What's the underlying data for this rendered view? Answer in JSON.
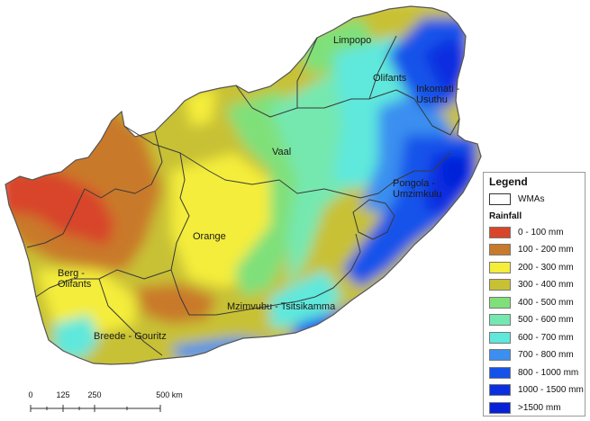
{
  "map": {
    "regions": [
      {
        "name": "Limpopo"
      },
      {
        "name": "Olifants"
      },
      {
        "name": "Inkomati -",
        "name2": "Usuthu"
      },
      {
        "name": "Vaal"
      },
      {
        "name": "Pongola -",
        "name2": "Umzimkulu"
      },
      {
        "name": "Orange"
      },
      {
        "name": "Berg -",
        "name2": "Olifants"
      },
      {
        "name": "Mzimvubu - Tsitsikamma"
      },
      {
        "name": "Breede - Gouritz"
      }
    ],
    "colors": {
      "c0_100": "#d8452a",
      "c100_200": "#c9792a",
      "c200_300": "#f4ed3a",
      "c300_400": "#c8c134",
      "c400_500": "#7fe07a",
      "c500_600": "#74e8b0",
      "c600_700": "#5fe8dc",
      "c700_800": "#3a8ff0",
      "c800_1000": "#1452ea",
      "c1000_1500": "#0a2fe0",
      "c1500": "#0621d8",
      "border": "#3a3a3a"
    }
  },
  "legend": {
    "title": "Legend",
    "wma_label": "WMAs",
    "rainfall_label": "Rainfall",
    "items": [
      {
        "label": "0 - 100 mm",
        "color": "#d8452a"
      },
      {
        "label": "100 - 200 mm",
        "color": "#c9792a"
      },
      {
        "label": "200 - 300 mm",
        "color": "#f4ed3a"
      },
      {
        "label": "300 - 400 mm",
        "color": "#c8c134"
      },
      {
        "label": "400 - 500 mm",
        "color": "#7fe07a"
      },
      {
        "label": "500 - 600 mm",
        "color": "#74e8b0"
      },
      {
        "label": "600 - 700 mm",
        "color": "#5fe8dc"
      },
      {
        "label": "700 - 800 mm",
        "color": "#3a8ff0"
      },
      {
        "label": "800 - 1000 mm",
        "color": "#1452ea"
      },
      {
        "label": "1000 - 1500 mm",
        "color": "#0a2fe0"
      },
      {
        "label": ">1500 mm",
        "color": "#0621d8"
      }
    ]
  },
  "scale": {
    "ticks": [
      "0",
      "125",
      "250",
      "500 km"
    ]
  }
}
